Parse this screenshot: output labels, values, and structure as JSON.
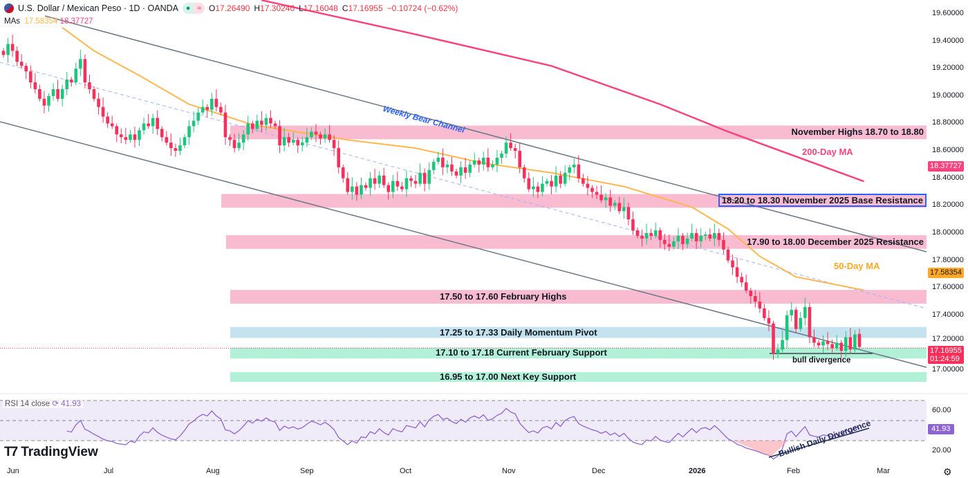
{
  "header": {
    "symbol_title": "U.S. Dollar / Mexican Peso · 1D · OANDA",
    "open_label": "O",
    "open": "17.26490",
    "high_label": "H",
    "high": "17.30240",
    "low_label": "L",
    "low": "17.16048",
    "close_label": "C",
    "close": "17.16955",
    "change": "−0.10724 (−0.62%)",
    "mas_label": "MAs",
    "ma50_value": "17.58354",
    "ma200_value": "18.37727"
  },
  "rsi": {
    "label": "RSI 14 close",
    "value": "41.93",
    "axis_ticks": [
      "60.00",
      "20.00"
    ],
    "levels": [
      70,
      50,
      30
    ]
  },
  "branding": {
    "logo_text": "TradingView"
  },
  "price_axis": {
    "ticks": [
      "19.60000",
      "19.40000",
      "19.20000",
      "19.00000",
      "18.80000",
      "18.60000",
      "18.40000",
      "18.20000",
      "18.00000",
      "17.80000",
      "17.60000",
      "17.40000",
      "17.20000",
      "17.00000"
    ],
    "ma200_badge": "18.37727",
    "ma50_badge": "17.58354",
    "last_price_badge": "17.16955",
    "countdown": "01:24:59"
  },
  "time_axis": {
    "labels": [
      "Jun",
      "Jul",
      "Aug",
      "Sep",
      "Oct",
      "Nov",
      "Dec",
      "2026",
      "Feb",
      "Mar"
    ]
  },
  "annotations": {
    "channel": "Weekly Bear Channel",
    "ma200": "200-Day MA",
    "ma50": "50-Day MA",
    "bull_div": "bull divergence",
    "rsi_div": "Bullish Daily Divergence"
  },
  "zones": [
    {
      "label": "November Highs 18.70 to 18.80",
      "low": 18.7,
      "high": 18.8,
      "color": "#f8bbd0"
    },
    {
      "label": "18.20 to 18.30 November 2025 Base Resistance",
      "low": 18.2,
      "high": 18.3,
      "color": "#f8bbd0"
    },
    {
      "label": "17.90 to 18.00 December 2025 Resistance",
      "low": 17.9,
      "high": 18.0,
      "color": "#f8bbd0"
    },
    {
      "label": "17.50 to 17.60 February Highs",
      "low": 17.5,
      "high": 17.6,
      "color": "#f8bbd0"
    },
    {
      "label": "17.25 to 17.33 Daily Momentum Pivot",
      "low": 17.25,
      "high": 17.33,
      "color": "#c5e3ee"
    },
    {
      "label": "17.10 to 17.18 Current February Support",
      "low": 17.1,
      "high": 17.18,
      "color": "#b2f0d8"
    },
    {
      "label": "16.95 to 17.00 Next Key Support",
      "low": 16.95,
      "high": 17.0,
      "color": "#b2f0d8"
    }
  ],
  "colors": {
    "up": "#1fc47d",
    "down": "#f7305b",
    "ma50": "#ffb74d",
    "ma200": "#f7437f",
    "channel": "#6b7785",
    "rsi": "#8e63d4",
    "accent_blue": "#2962ff"
  },
  "chart_data": {
    "type": "candlestick",
    "title": "U.S. Dollar / Mexican Peso · 1D · OANDA",
    "ylim": [
      16.9,
      19.66
    ],
    "x_range": [
      "Jun",
      "Feb"
    ],
    "grid": false,
    "closes": [
      19.3,
      19.38,
      19.33,
      19.25,
      19.22,
      19.18,
      19.1,
      19.05,
      18.98,
      18.93,
      19.0,
      19.05,
      18.98,
      19.05,
      19.12,
      19.1,
      19.2,
      19.27,
      19.1,
      19.05,
      18.98,
      18.92,
      18.85,
      18.8,
      18.78,
      18.72,
      18.7,
      18.68,
      18.72,
      18.68,
      18.75,
      18.8,
      18.78,
      18.84,
      18.76,
      18.7,
      18.66,
      18.62,
      18.6,
      18.64,
      18.7,
      18.78,
      18.82,
      18.88,
      18.92,
      18.9,
      18.98,
      18.92,
      18.88,
      18.7,
      18.68,
      18.62,
      18.66,
      18.72,
      18.8,
      18.76,
      18.82,
      18.79,
      18.84,
      18.8,
      18.78,
      18.64,
      18.7,
      18.66,
      18.68,
      18.64,
      18.66,
      18.7,
      18.74,
      18.72,
      18.69,
      18.72,
      18.68,
      18.62,
      18.48,
      18.4,
      18.3,
      18.34,
      18.28,
      18.35,
      18.33,
      18.4,
      18.36,
      18.42,
      18.35,
      18.3,
      18.38,
      18.34,
      18.32,
      18.4,
      18.38,
      18.36,
      18.44,
      18.36,
      18.46,
      18.52,
      18.55,
      18.48,
      18.5,
      18.45,
      18.42,
      18.48,
      18.44,
      18.5,
      18.53,
      18.5,
      18.55,
      18.48,
      18.5,
      18.55,
      18.58,
      18.66,
      18.62,
      18.6,
      18.48,
      18.4,
      18.32,
      18.34,
      18.3,
      18.36,
      18.38,
      18.34,
      18.42,
      18.36,
      18.44,
      18.48,
      18.5,
      18.4,
      18.36,
      18.33,
      18.3,
      18.28,
      18.24,
      18.26,
      18.2,
      18.22,
      18.16,
      18.19,
      18.1,
      18.02,
      17.98,
      17.96,
      18.0,
      17.98,
      18.02,
      17.95,
      17.92,
      17.9,
      17.94,
      17.98,
      17.92,
      17.96,
      18.0,
      17.94,
      17.98,
      17.99,
      17.96,
      18.0,
      17.95,
      17.88,
      17.8,
      17.75,
      17.68,
      17.64,
      17.58,
      17.54,
      17.5,
      17.45,
      17.38,
      17.34,
      17.12,
      17.15,
      17.22,
      17.4,
      17.44,
      17.3,
      17.38,
      17.46,
      17.24,
      17.2,
      17.18,
      17.21,
      17.19,
      17.16,
      17.2,
      17.14,
      17.24,
      17.15,
      17.26,
      17.17
    ],
    "last_candle": {
      "open": 17.2649,
      "high": 17.3024,
      "low": 17.16048,
      "close": 17.16955
    },
    "ma50": [
      [
        13,
        19.5
      ],
      [
        20,
        19.33
      ],
      [
        30,
        19.15
      ],
      [
        41,
        18.94
      ],
      [
        55,
        18.79
      ],
      [
        76,
        18.68
      ],
      [
        91,
        18.62
      ],
      [
        106,
        18.51
      ],
      [
        121,
        18.44
      ],
      [
        137,
        18.34
      ],
      [
        152,
        18.19
      ],
      [
        160,
        18.03
      ],
      [
        167,
        17.83
      ],
      [
        175,
        17.68
      ],
      [
        190,
        17.58354
      ]
    ],
    "ma200": [
      [
        57,
        19.7
      ],
      [
        91,
        19.45
      ],
      [
        121,
        19.22
      ],
      [
        145,
        18.94
      ],
      [
        160,
        18.74
      ],
      [
        190,
        18.37727
      ]
    ]
  }
}
